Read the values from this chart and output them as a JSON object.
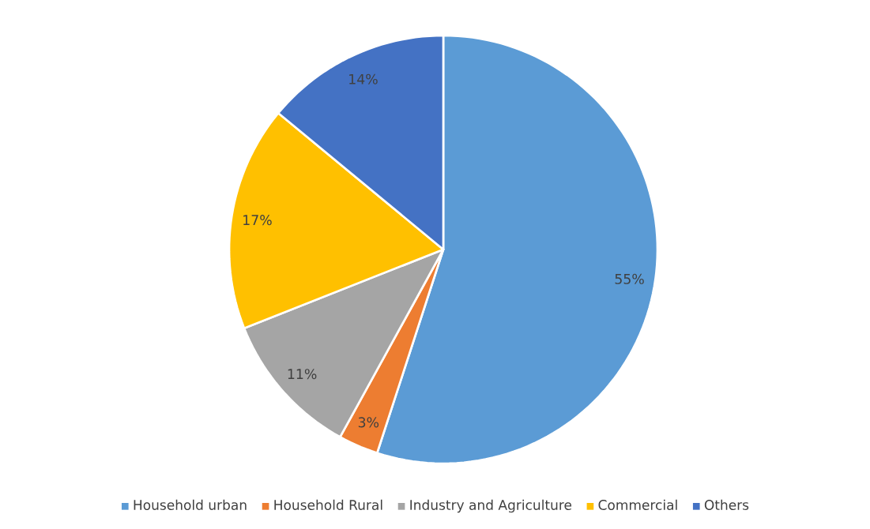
{
  "chart_data": {
    "type": "pie",
    "categories": [
      "Household urban",
      "Household Rural",
      "Industry and Agriculture",
      "Commercial",
      "Others"
    ],
    "values": [
      55,
      3,
      11,
      17,
      14
    ],
    "colors": [
      "#5b9bd5",
      "#ed7d31",
      "#a5a5a5",
      "#ffc000",
      "#4472c4"
    ],
    "value_labels": [
      "55%",
      "3%",
      "11%",
      "17%",
      "14%"
    ],
    "legend": "bottom"
  }
}
